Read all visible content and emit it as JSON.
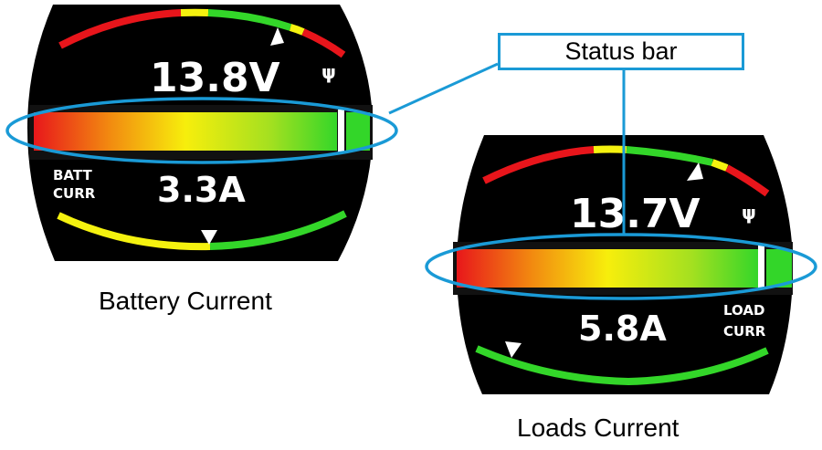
{
  "display_battery": {
    "voltage": "13.8V",
    "current": "3.3A",
    "label_line1": "BATT",
    "label_line2": "CURR",
    "icon": "usb-icon"
  },
  "display_loads": {
    "voltage": "13.7V",
    "current": "5.8A",
    "label_line1": "LOAD",
    "label_line2": "CURR",
    "icon": "usb-icon"
  },
  "captions": {
    "battery": "Battery Current",
    "loads": "Loads Current"
  },
  "callout": {
    "label": "Status bar"
  },
  "colors": {
    "highlight": "#1a9ad6",
    "red": "#e8151b",
    "yellow": "#f5f20f",
    "green": "#33d629"
  }
}
